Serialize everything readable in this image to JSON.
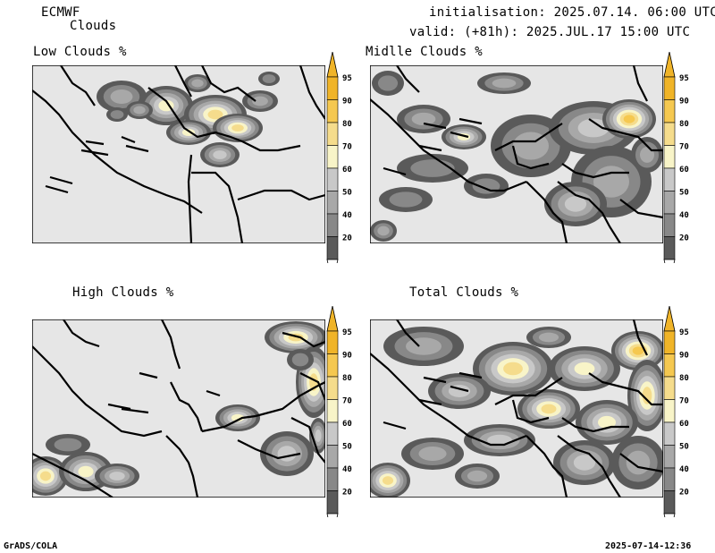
{
  "header": {
    "model": "ECMWF",
    "product": "Clouds",
    "init": "initialisation: 2025.07.14. 06:00 UTC",
    "valid": "valid: (+81h): 2025.JUL.17 15:00 UTC"
  },
  "panels": [
    {
      "title": "Low Clouds %"
    },
    {
      "title": "Midlle Clouds %"
    },
    {
      "title": "High Clouds %"
    },
    {
      "title": "Total Clouds %"
    }
  ],
  "colorbar": {
    "labels": [
      "95",
      "90",
      "80",
      "70",
      "60",
      "50",
      "40",
      "20"
    ],
    "colors": {
      "c95": "#f0b428",
      "c90": "#f5c850",
      "c80": "#f5dc8c",
      "c70": "#f8f4c8",
      "c60": "#c8c8c8",
      "c50": "#a8a8a8",
      "c40": "#888888",
      "c20": "#5a5a5a",
      "background": "#e6e6e6"
    }
  },
  "footer": {
    "left": "GrADS/COLA",
    "right": "2025-07-14-12:36"
  }
}
